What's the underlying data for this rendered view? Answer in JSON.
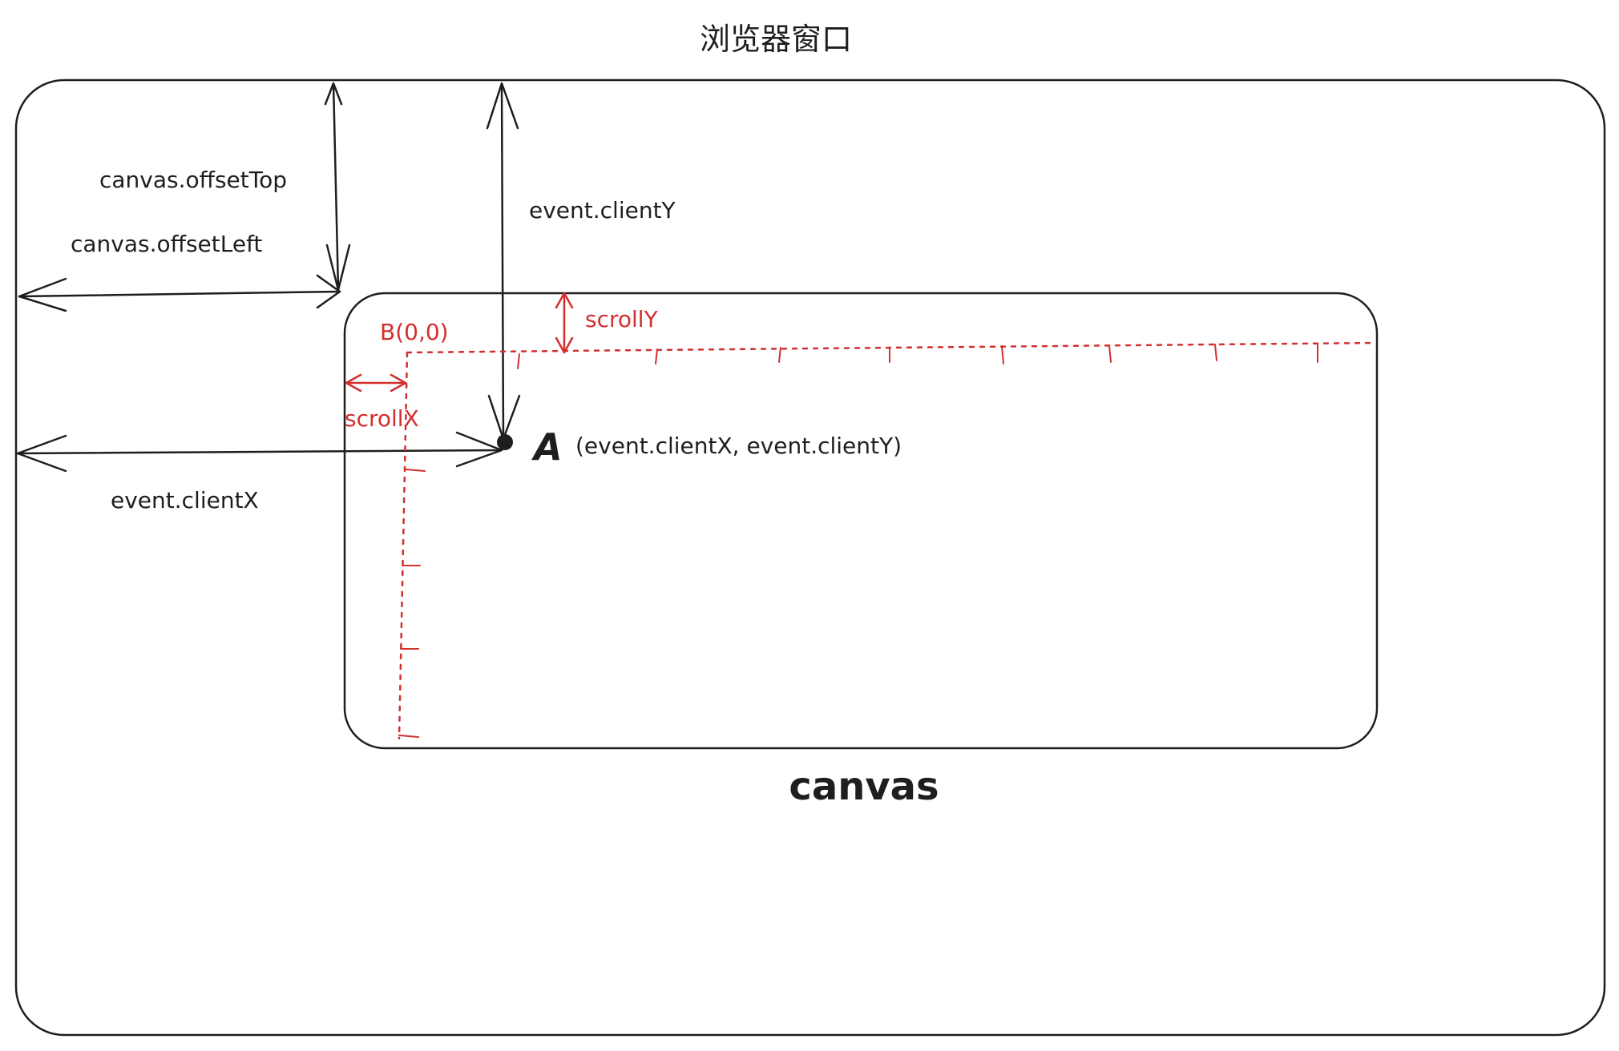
{
  "diagram": {
    "window_title": "浏览器窗口",
    "canvas_label": "canvas",
    "labels": {
      "offset_top": "canvas.offsetTop",
      "offset_left": "canvas.offsetLeft",
      "client_y": "event.clientY",
      "client_x": "event.clientX",
      "scroll_y": "scrollY",
      "scroll_x": "scrollX",
      "origin_b": "B(0,0)",
      "point_a_letter": "A",
      "point_a_coords": "(event.clientX, event.clientY)"
    },
    "colors": {
      "ink": "#1e1e1e",
      "accent": "#d32f2f",
      "background": "#ffffff"
    }
  }
}
